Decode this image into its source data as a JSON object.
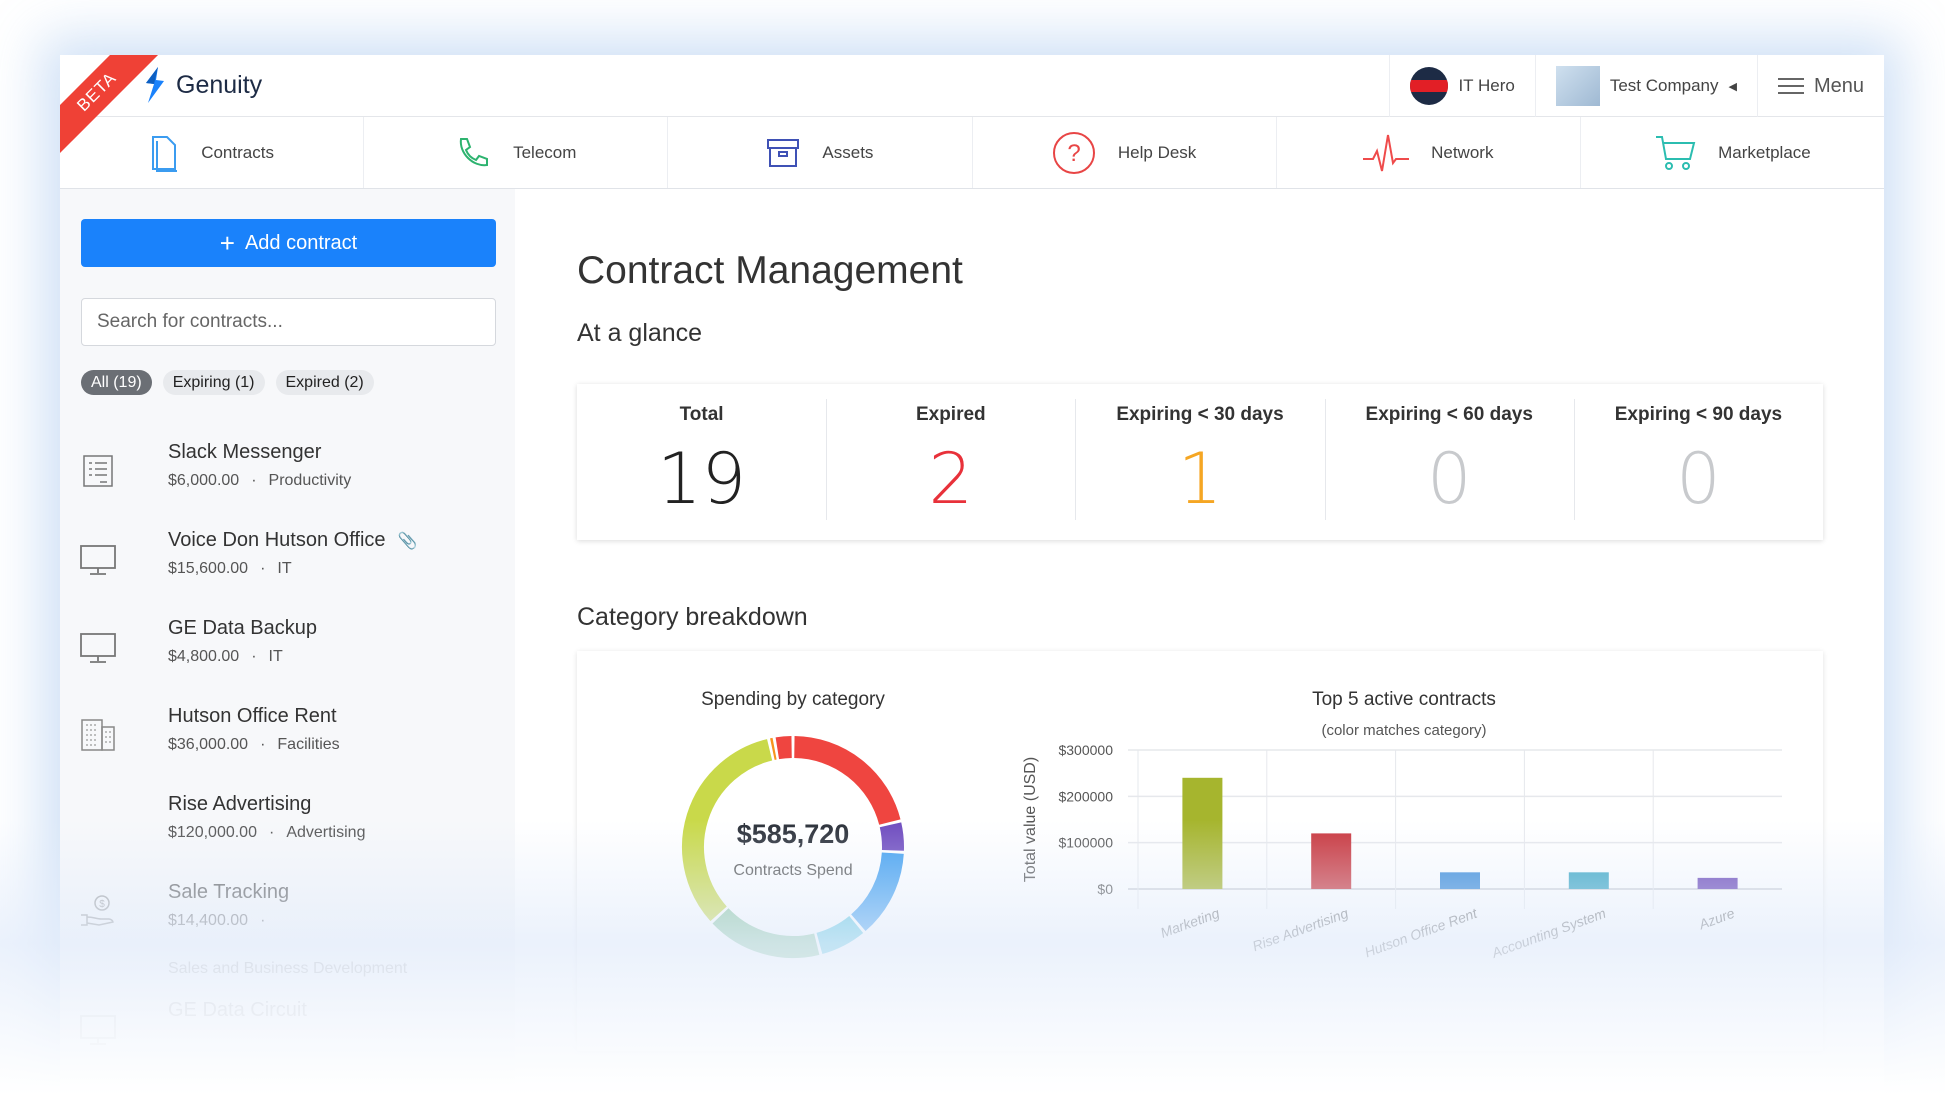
{
  "header": {
    "beta_label": "BETA",
    "app_name": "Genuity",
    "user_name": "IT Hero",
    "company_name": "Test Company",
    "menu_label": "Menu"
  },
  "nav": {
    "tabs": [
      {
        "label": "Contracts",
        "icon": "document-icon",
        "color": "#3b9cf0"
      },
      {
        "label": "Telecom",
        "icon": "phone-icon",
        "color": "#2db36f"
      },
      {
        "label": "Assets",
        "icon": "archive-box-icon",
        "color": "#3f51b5"
      },
      {
        "label": "Help Desk",
        "icon": "question-circle-icon",
        "color": "#e84545"
      },
      {
        "label": "Network",
        "icon": "pulse-icon",
        "color": "#ef4b4b"
      },
      {
        "label": "Marketplace",
        "icon": "cart-icon",
        "color": "#2bbdb0"
      }
    ]
  },
  "sidebar": {
    "add_label": "Add contract",
    "search_placeholder": "Search for contracts...",
    "filters": [
      {
        "label": "All (19)",
        "active": true
      },
      {
        "label": "Expiring (1)"
      },
      {
        "label": "Expired (2)"
      }
    ],
    "contracts": [
      {
        "name": "Slack Messenger",
        "amount": "$6,000.00",
        "category": "Productivity",
        "icon": "checklist-icon"
      },
      {
        "name": "Voice Don Hutson Office",
        "amount": "$15,600.00",
        "category": "IT",
        "icon": "monitor-icon",
        "attachment": true
      },
      {
        "name": "GE Data Backup",
        "amount": "$4,800.00",
        "category": "IT",
        "icon": "monitor-icon"
      },
      {
        "name": "Hutson Office Rent",
        "amount": "$36,000.00",
        "category": "Facilities",
        "icon": "building-icon"
      },
      {
        "name": "Rise Advertising",
        "amount": "$120,000.00",
        "category": "Advertising",
        "icon": ""
      },
      {
        "name": "Sale Tracking",
        "amount": "$14,400.00",
        "category": "Sales and Business Development",
        "icon": "money-hand-icon"
      },
      {
        "name": "GE Data Circuit",
        "amount": "",
        "category": "",
        "icon": "monitor-icon"
      }
    ]
  },
  "main": {
    "title": "Contract Management",
    "glance_title": "At a glance",
    "stats": [
      {
        "label": "Total",
        "value": "19",
        "color": "#222222"
      },
      {
        "label": "Expired",
        "value": "2",
        "color": "#e8313a"
      },
      {
        "label": "Expiring < 30 days",
        "value": "1",
        "color": "#f5a623"
      },
      {
        "label": "Expiring < 60 days",
        "value": "0",
        "color": "#c8cacd"
      },
      {
        "label": "Expiring < 90 days",
        "value": "0",
        "color": "#c8cacd"
      }
    ],
    "breakdown_title": "Category breakdown"
  },
  "chart_data": [
    {
      "type": "pie",
      "title": "Spending by category",
      "center_value": "$585,720",
      "center_label": "Contracts Spend",
      "slices_percent": [
        21,
        4.5,
        13,
        7,
        17,
        33,
        0.8,
        2.7
      ],
      "colors": [
        "#ef4540",
        "#6f4cbf",
        "#42a0f0",
        "#5fc8e0",
        "#8cc7a1",
        "#c9d94a",
        "#f7931e",
        "#ef4540"
      ]
    },
    {
      "type": "bar",
      "title": "Top 5 active contracts",
      "subtitle": "(color matches category)",
      "ylabel": "Total value (USD)",
      "categories": [
        "Marketing",
        "Rise Advertising",
        "Hutson Office Rent",
        "Accounting System",
        "Azure"
      ],
      "values": [
        240000,
        120000,
        36000,
        36000,
        24000
      ],
      "colors": [
        "#a6b52e",
        "#c9363d",
        "#3789d8",
        "#3aa6c4",
        "#6a47b8"
      ],
      "ylim": [
        0,
        300000
      ],
      "yticks": [
        "$0",
        "$100000",
        "$200000",
        "$300000"
      ],
      "grid": true
    }
  ]
}
